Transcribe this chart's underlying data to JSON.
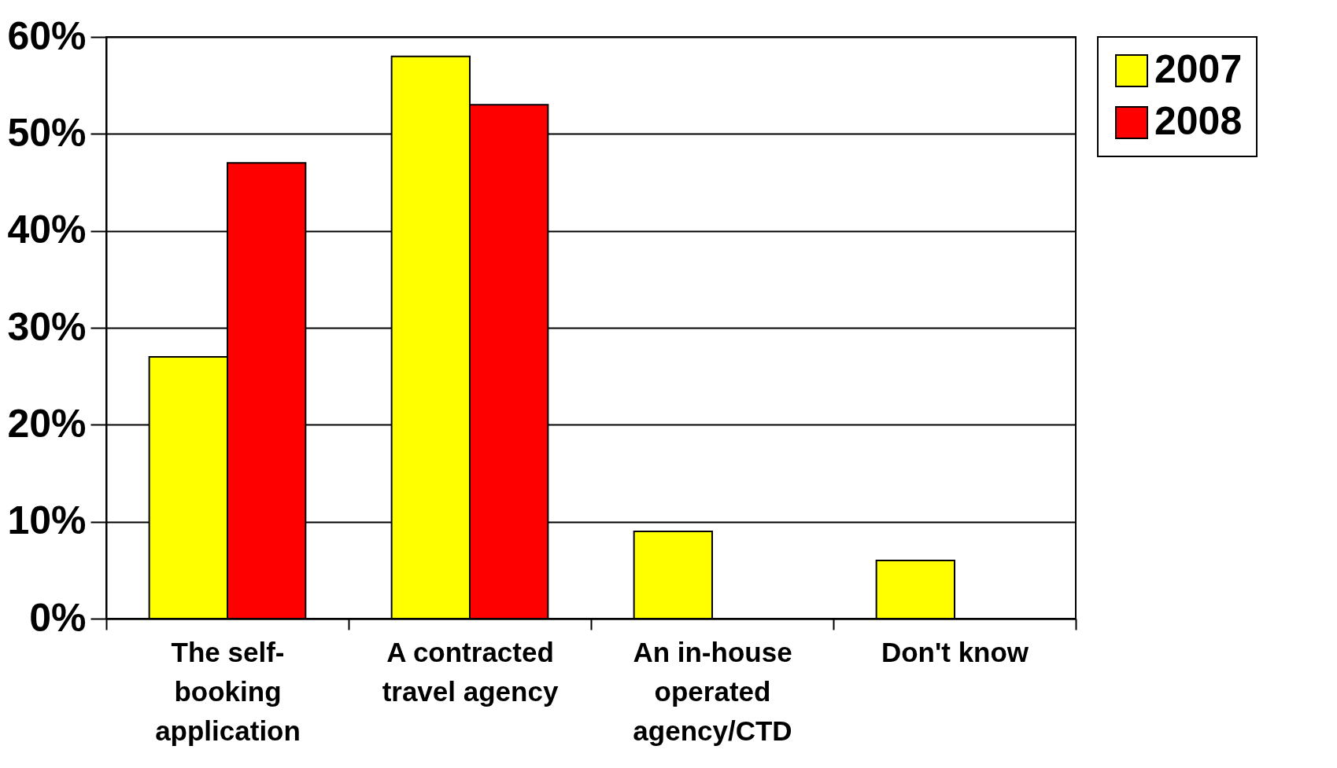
{
  "chart_data": {
    "type": "bar",
    "categories": [
      "The self-booking application",
      "A contracted travel agency",
      "An in-house operated agency/CTD",
      "Don't know"
    ],
    "series": [
      {
        "name": "2007",
        "color": "#ffff00",
        "values": [
          27,
          58,
          9,
          6
        ]
      },
      {
        "name": "2008",
        "color": "#ff0000",
        "values": [
          47,
          53,
          null,
          null
        ]
      }
    ],
    "ylim": [
      0,
      60
    ],
    "yticks": [
      {
        "value": 0,
        "label": "0%"
      },
      {
        "value": 10,
        "label": "10%"
      },
      {
        "value": 20,
        "label": "20%"
      },
      {
        "value": 30,
        "label": "30%"
      },
      {
        "value": 40,
        "label": "40%"
      },
      {
        "value": 50,
        "label": "50%"
      },
      {
        "value": 60,
        "label": "60%"
      }
    ],
    "grid": "y",
    "legend": "right"
  }
}
